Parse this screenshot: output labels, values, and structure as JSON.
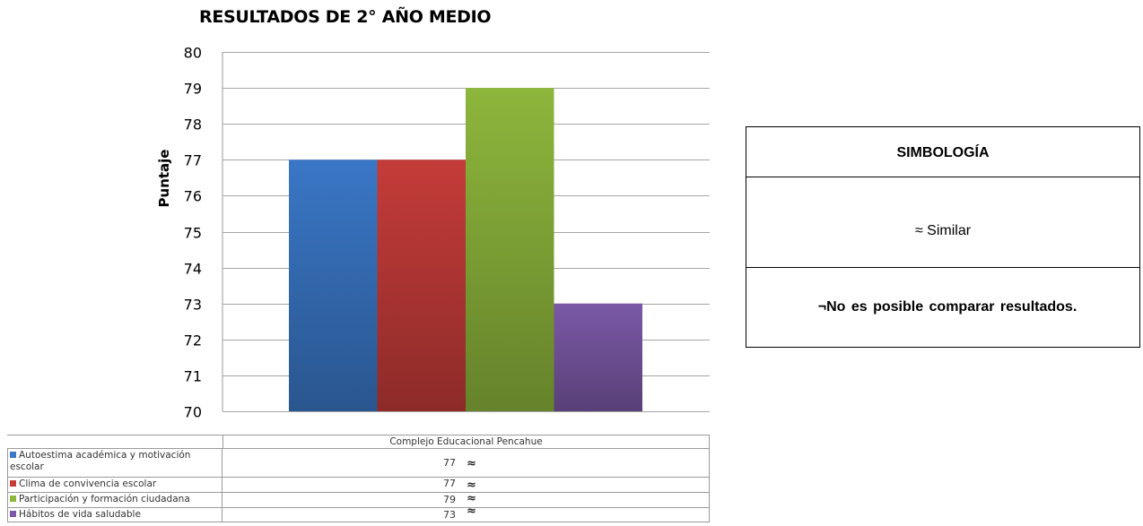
{
  "chart_data": {
    "type": "bar",
    "title": "RESULTADOS DE 2° AÑO MEDIO",
    "ylabel": "Puntaje",
    "xlabel": "",
    "ylim": [
      70,
      80
    ],
    "yticks": [
      "70",
      "71",
      "72",
      "73",
      "74",
      "75",
      "76",
      "77",
      "78",
      "79",
      "80"
    ],
    "categories": [
      "Complejo Educacional Pencahue"
    ],
    "grid": true,
    "series": [
      {
        "name": "Autoestima académica y motivación escolar",
        "values": [
          77
        ],
        "color": "#3a77c6",
        "symbol": "≈"
      },
      {
        "name": "Clima de convivencia escolar",
        "values": [
          77
        ],
        "color": "#c43c39",
        "symbol": "≈"
      },
      {
        "name": "Participación y formación ciudadana",
        "values": [
          79
        ],
        "color": "#8db63c",
        "symbol": "≈"
      },
      {
        "name": "Hábitos de vida saludable",
        "values": [
          73
        ],
        "color": "#7b59a6",
        "symbol": "≈"
      }
    ]
  },
  "table": {
    "rows": [
      {
        "label": "Autoestima académica y motivación escolar",
        "value": "77",
        "symbol": "≈"
      },
      {
        "label": "Clima de convivencia escolar",
        "value": "77",
        "symbol": "≈"
      },
      {
        "label": "Participación y formación ciudadana",
        "value": "79",
        "symbol": "≈"
      },
      {
        "label": "Hábitos de vida saludable",
        "value": "73",
        "symbol": "≈"
      }
    ]
  },
  "legend_box": {
    "header": "SIMBOLOGÍA",
    "similar": "≈ Similar",
    "no_comparable": "¬No es posible comparar resultados."
  }
}
